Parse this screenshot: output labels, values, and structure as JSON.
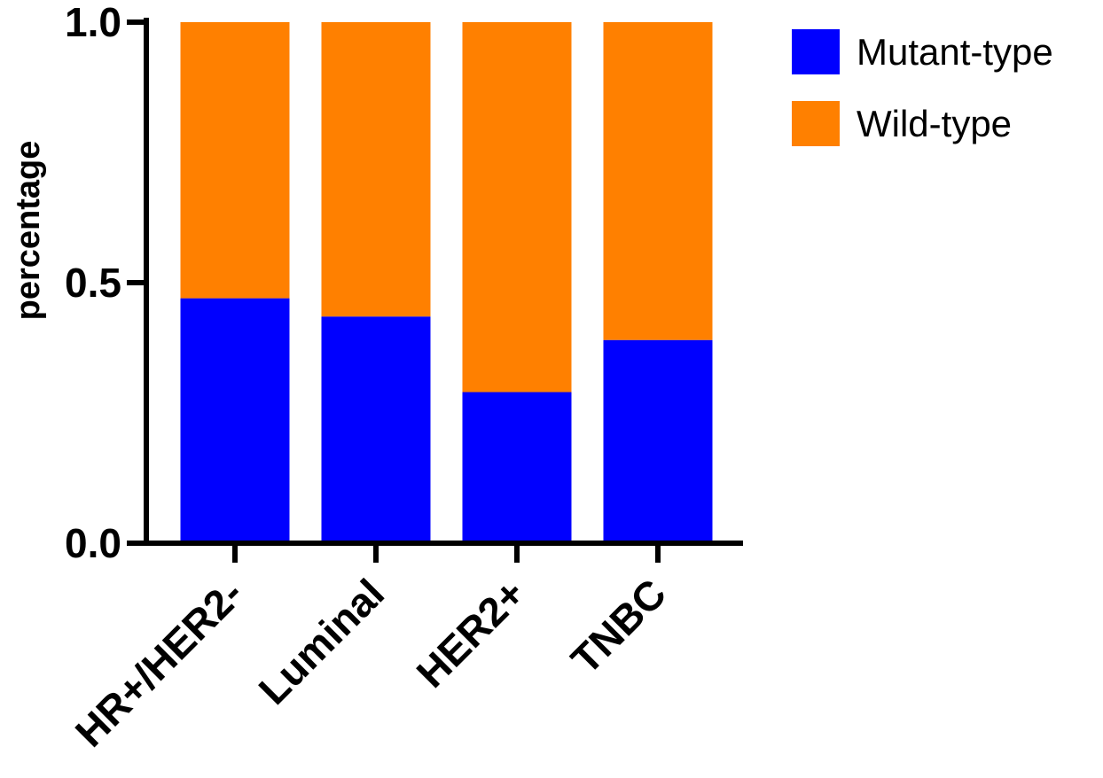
{
  "chart_data": {
    "type": "bar",
    "stacked": true,
    "title": "",
    "xlabel": "",
    "ylabel": "percentage",
    "ylim": [
      0,
      1.0
    ],
    "yticks": [
      0.0,
      0.5,
      1.0
    ],
    "ytick_labels": [
      "0.0",
      "0.5",
      "1.0"
    ],
    "categories": [
      "HR+/HER2-",
      "Luminal",
      "HER2+",
      "TNBC"
    ],
    "series": [
      {
        "name": "Mutant-type",
        "color": "#0000ff",
        "values": [
          0.47,
          0.435,
          0.29,
          0.39
        ]
      },
      {
        "name": "Wild-type",
        "color": "#ff8000",
        "values": [
          0.53,
          0.565,
          0.71,
          0.61
        ]
      }
    ],
    "legend": {
      "position": "top-right",
      "order": [
        "Mutant-type",
        "Wild-type"
      ]
    },
    "grid": false
  }
}
